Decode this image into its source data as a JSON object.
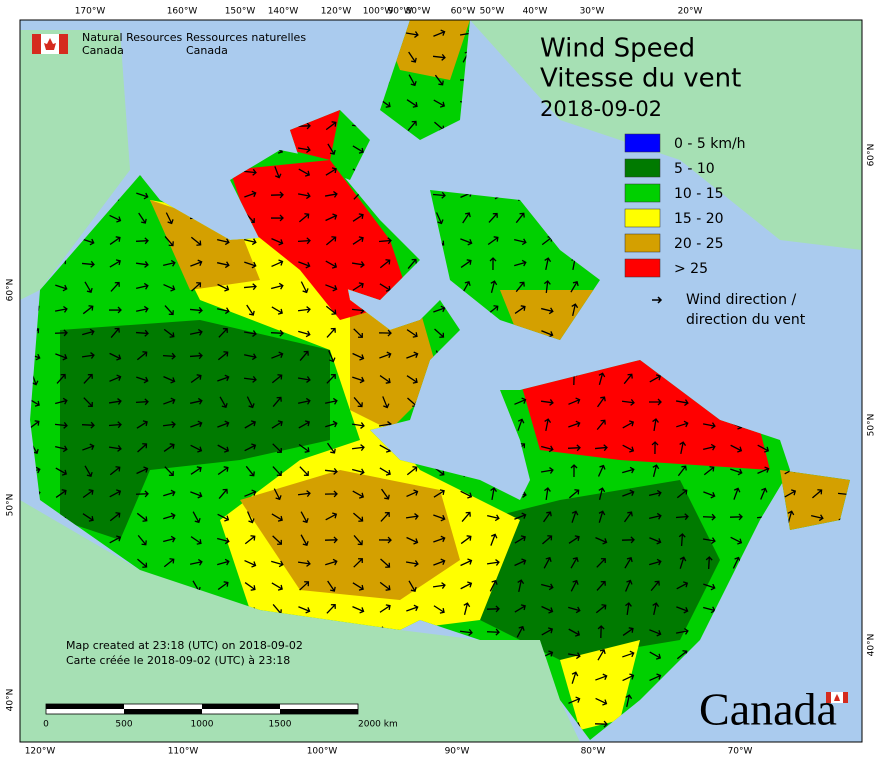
{
  "header": {
    "agency_en": [
      "Natural Resources",
      "Canada"
    ],
    "agency_fr": [
      "Ressources naturelles",
      "Canada"
    ]
  },
  "title": [
    "Wind Speed",
    "Vitesse du vent"
  ],
  "date": "2018-09-02",
  "legend": {
    "items": [
      {
        "label": "0 - 5 km/h",
        "color": "#0000ff"
      },
      {
        "label": "5 - 10",
        "color": "#007a00"
      },
      {
        "label": "10 - 15",
        "color": "#00d000"
      },
      {
        "label": "15 - 20",
        "color": "#ffff00"
      },
      {
        "label": "20 - 25",
        "color": "#d4a000"
      },
      {
        "label": "> 25",
        "color": "#ff0000"
      }
    ],
    "arrow_label": [
      "Wind direction /",
      "direction du vent"
    ]
  },
  "graticule": {
    "top": [
      "170°W",
      "160°W",
      "150°W",
      "140°W",
      "120°W",
      "100°W",
      "90°W",
      "80°W",
      "60°W",
      "50°W",
      "40°W",
      "30°W",
      "20°W"
    ],
    "bottom": [
      "120°W",
      "110°W",
      "100°W",
      "90°W",
      "80°W",
      "70°W"
    ],
    "left": [
      "60°N",
      "50°N",
      "40°N"
    ],
    "right": [
      "60°N",
      "50°N",
      "40°N"
    ]
  },
  "credits": [
    "Map created at 23:18 (UTC) on 2018-09-02",
    "Carte créée le 2018-09-02 (UTC) à 23:18"
  ],
  "scale": [
    "0",
    "500",
    "1000",
    "1500",
    "2000 km"
  ],
  "wordmark": "Canada"
}
